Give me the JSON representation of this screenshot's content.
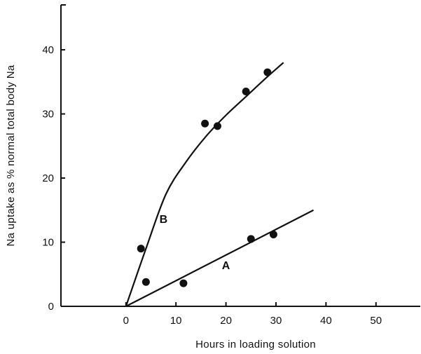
{
  "chart_data": {
    "type": "scatter",
    "title": "",
    "xlabel": "Hours in loading solution",
    "ylabel": "Na uptake as % normal total body Na",
    "xlim": [
      -13,
      59
    ],
    "ylim": [
      0,
      47
    ],
    "x_ticks": [
      0,
      10,
      20,
      30,
      40,
      50
    ],
    "y_ticks": [
      0,
      10,
      20,
      30,
      40
    ],
    "x_tick_labels": [
      "0",
      "10",
      "20",
      "30",
      "40",
      "50"
    ],
    "y_tick_labels": [
      "0",
      "10",
      "20",
      "30",
      "40"
    ],
    "grid": false,
    "series": [
      {
        "name": "A",
        "points": [
          {
            "x": 4,
            "y": 3.8
          },
          {
            "x": 11.5,
            "y": 3.6
          },
          {
            "x": 25,
            "y": 10.5
          },
          {
            "x": 29.5,
            "y": 11.2
          }
        ],
        "curve": [
          {
            "x": 0,
            "y": 0
          },
          {
            "x": 37.5,
            "y": 15
          }
        ]
      },
      {
        "name": "B",
        "points": [
          {
            "x": 3,
            "y": 9
          },
          {
            "x": 15.8,
            "y": 28.5
          },
          {
            "x": 18.3,
            "y": 28.1
          },
          {
            "x": 24,
            "y": 33.5
          },
          {
            "x": 28.3,
            "y": 36.5
          }
        ],
        "curve": [
          {
            "x": 0,
            "y": 0
          },
          {
            "x": 4,
            "y": 9
          },
          {
            "x": 8,
            "y": 17.5
          },
          {
            "x": 12,
            "y": 22.5
          },
          {
            "x": 16,
            "y": 26.5
          },
          {
            "x": 20,
            "y": 29.8
          },
          {
            "x": 24,
            "y": 32.7
          },
          {
            "x": 28,
            "y": 35.6
          },
          {
            "x": 31.5,
            "y": 38
          }
        ]
      }
    ],
    "curve_labels": [
      {
        "text": "A",
        "x": 20,
        "y": 5.8
      },
      {
        "text": "B",
        "x": 7.5,
        "y": 13
      }
    ]
  }
}
